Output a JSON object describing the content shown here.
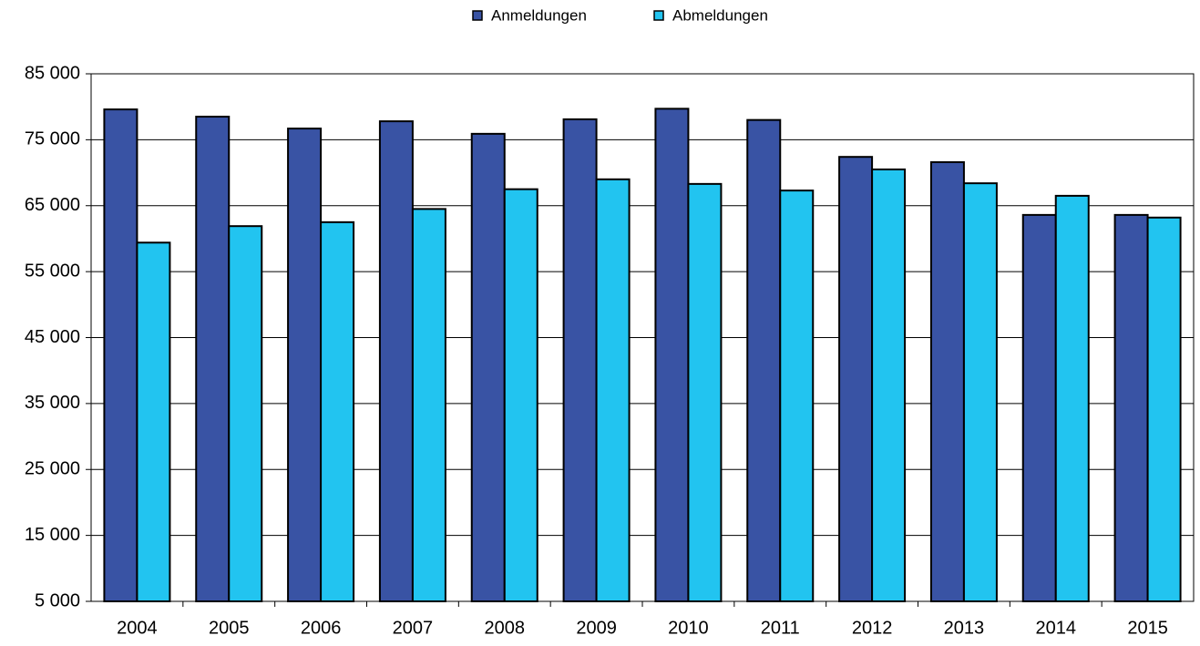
{
  "chart_data": {
    "type": "bar",
    "categories": [
      "2004",
      "2005",
      "2006",
      "2007",
      "2008",
      "2009",
      "2010",
      "2011",
      "2012",
      "2013",
      "2014",
      "2015"
    ],
    "series": [
      {
        "name": "Anmeldungen",
        "color": "#3953a4",
        "values": [
          79600,
          78500,
          76700,
          77800,
          75900,
          78100,
          79700,
          78000,
          72400,
          71600,
          63600,
          63600
        ]
      },
      {
        "name": "Abmeldungen",
        "color": "#22c4f0",
        "values": [
          59400,
          61900,
          62500,
          64500,
          67500,
          69000,
          68300,
          67300,
          70500,
          68400,
          66500,
          63200
        ]
      }
    ],
    "ylim": [
      5000,
      85000
    ],
    "yticks": [
      {
        "value": 5000,
        "label": "5 000"
      },
      {
        "value": 15000,
        "label": "15 000"
      },
      {
        "value": 25000,
        "label": "25 000"
      },
      {
        "value": 35000,
        "label": "35 000"
      },
      {
        "value": 45000,
        "label": "45 000"
      },
      {
        "value": 55000,
        "label": "55 000"
      },
      {
        "value": 65000,
        "label": "65 000"
      },
      {
        "value": 75000,
        "label": "75 000"
      },
      {
        "value": 85000,
        "label": "85 000"
      }
    ],
    "grid": true,
    "legend": "top"
  }
}
